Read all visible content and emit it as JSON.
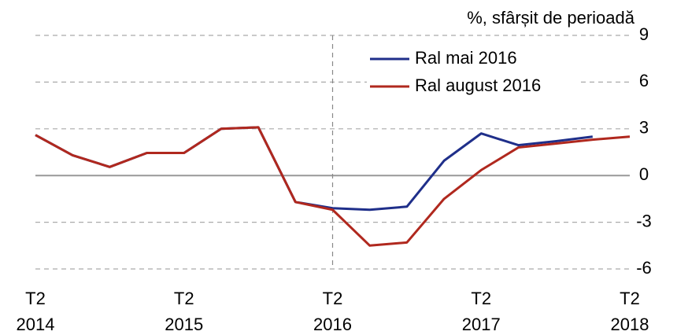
{
  "chart_data": {
    "type": "line",
    "y_axis_label": "%, sfârșit de perioadă",
    "categories": [
      "T2 2014",
      null,
      null,
      null,
      "T2 2015",
      null,
      null,
      null,
      "T2 2016",
      null,
      null,
      null,
      "T2 2017",
      null,
      null,
      null,
      "T2 2018"
    ],
    "series": [
      {
        "name": "Ral mai 2016",
        "color": "#1f2f8a",
        "values": [
          2.6,
          1.3,
          0.55,
          1.45,
          1.45,
          3.0,
          3.1,
          -1.7,
          -2.1,
          -2.2,
          -2.0,
          0.95,
          2.7,
          1.95,
          2.2,
          2.5,
          null
        ]
      },
      {
        "name": "Ral august 2016",
        "color": "#b0281e",
        "values": [
          2.6,
          1.3,
          0.55,
          1.45,
          1.45,
          3.0,
          3.1,
          -1.7,
          -2.2,
          -4.5,
          -4.3,
          -1.5,
          0.35,
          1.8,
          2.05,
          2.3,
          2.5
        ]
      }
    ],
    "ylim": [
      -6,
      9
    ],
    "yticks": [
      -6,
      -3,
      0,
      3,
      6,
      9
    ],
    "grid": true,
    "vline": "T2 2016",
    "legend": "top"
  }
}
